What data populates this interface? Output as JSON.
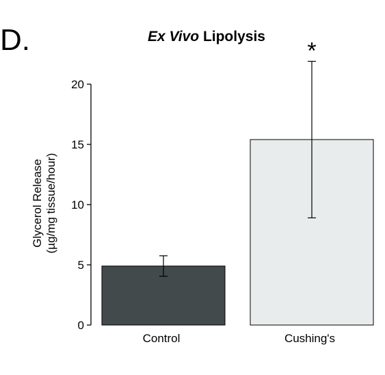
{
  "panel_label": "D.",
  "chart_data": {
    "type": "bar",
    "title_italic": "Ex Vivo",
    "title_rest": " Lipolysis",
    "ylabel_line1": "Glycerol Release",
    "ylabel_line2": "(µg/mg tissue/hour)",
    "xlabel": "",
    "ylim": [
      0,
      20
    ],
    "yticks": [
      0,
      5,
      10,
      15,
      20
    ],
    "categories": [
      "Control",
      "Cushing's"
    ],
    "values": [
      4.9,
      15.4
    ],
    "error": [
      0.85,
      6.5
    ],
    "significance": [
      "",
      "*"
    ],
    "colors": [
      "#434a4c",
      "#e9eced"
    ],
    "grid": false,
    "legend": "none"
  }
}
